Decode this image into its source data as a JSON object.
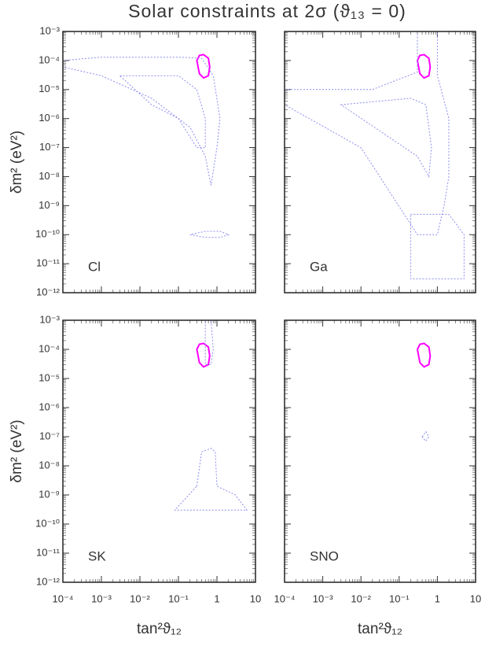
{
  "title": "Solar constraints at 2σ (ϑ₁₃ = 0)",
  "chart_data": [
    {
      "type": "contour",
      "label": "Cl",
      "log": true,
      "ylabel": "δm² (eV²)",
      "xtick_labels": false,
      "ytick_labels": true,
      "xlim": [
        0.0001,
        10
      ],
      "ylim": [
        1e-12,
        0.001
      ],
      "xticks": [
        {
          "value": 0.0001,
          "label": "10⁻⁴"
        },
        {
          "value": 0.001,
          "label": "10⁻³"
        },
        {
          "value": 0.01,
          "label": "10⁻²"
        },
        {
          "value": 0.1,
          "label": "10⁻¹"
        },
        1,
        10
      ],
      "yticks": [
        {
          "value": 1e-12,
          "label": "10⁻¹²"
        },
        {
          "value": 1e-11,
          "label": "10⁻¹¹"
        },
        {
          "value": 1e-10,
          "label": "10⁻¹⁰"
        },
        {
          "value": 1e-09,
          "label": "10⁻⁹"
        },
        {
          "value": 1e-08,
          "label": "10⁻⁸"
        },
        {
          "value": 1e-07,
          "label": "10⁻⁷"
        },
        {
          "value": 1e-06,
          "label": "10⁻⁶"
        },
        {
          "value": 1e-05,
          "label": "10⁻⁵"
        },
        {
          "value": 0.0001,
          "label": "10⁻⁴"
        },
        {
          "value": 0.001,
          "label": "10⁻³"
        }
      ],
      "series": [
        {
          "color": "#ff00ff",
          "dashed": false,
          "x": [
            0.3,
            0.35,
            0.45,
            0.6,
            0.65,
            0.6,
            0.45,
            0.35
          ],
          "y": [
            0.0001,
            0.00015,
            0.00016,
            0.00012,
            6e-05,
            3e-05,
            2.5e-05,
            3.5e-05
          ]
        },
        {
          "color": "#8c8cf0",
          "dashed": true,
          "x": [
            0.0001,
            0.001,
            0.1,
            0.4,
            0.8,
            1.2,
            1,
            0.7,
            0.5,
            0.2,
            0.02,
            0.001,
            0.0001
          ],
          "y": [
            0.0001,
            0.00013,
            0.00013,
            0.00012,
            3e-05,
            1e-06,
            1e-07,
            5e-09,
            5e-08,
            5e-07,
            5e-06,
            3e-05,
            6e-05
          ]
        },
        {
          "color": "#8c8cf0",
          "dashed": true,
          "x": [
            0.003,
            0.1,
            0.3,
            0.5,
            0.5,
            0.3,
            0.1,
            0.02
          ],
          "y": [
            3e-05,
            3e-05,
            1e-05,
            1e-06,
            1e-07,
            1e-07,
            1e-06,
            3e-06
          ]
        },
        {
          "color": "#8c8cf0",
          "dashed": true,
          "x": [
            0.2,
            0.5,
            1.2,
            2,
            1.2,
            0.5
          ],
          "y": [
            1e-10,
            8e-11,
            8e-11,
            1e-10,
            1.3e-10,
            1.3e-10
          ]
        }
      ]
    },
    {
      "type": "contour",
      "label": "Ga",
      "log": true,
      "xtick_labels": false,
      "ytick_labels": false,
      "xlim": [
        0.0001,
        10
      ],
      "ylim": [
        1e-12,
        0.001
      ],
      "xticks": [
        0.0001,
        0.001,
        0.01,
        0.1,
        1,
        10
      ],
      "yticks": [
        1e-12,
        1e-11,
        1e-10,
        1e-09,
        1e-08,
        1e-07,
        1e-06,
        1e-05,
        0.0001,
        0.001
      ],
      "series": [
        {
          "color": "#ff00ff",
          "dashed": false,
          "x": [
            0.3,
            0.35,
            0.45,
            0.6,
            0.65,
            0.6,
            0.45,
            0.35
          ],
          "y": [
            0.0001,
            0.00015,
            0.00016,
            0.00012,
            6e-05,
            3e-05,
            2.5e-05,
            3.5e-05
          ]
        },
        {
          "color": "#8c8cf0",
          "dashed": true,
          "x": [
            0.0001,
            0.02,
            0.3,
            0.3,
            1,
            1,
            2,
            2,
            1.5,
            1,
            0.3,
            0.01,
            0.0001
          ],
          "y": [
            1e-05,
            1e-05,
            4e-05,
            0.001,
            0.001,
            3e-05,
            1e-06,
            1e-08,
            1e-09,
            1e-10,
            1e-10,
            1e-07,
            3e-06
          ]
        },
        {
          "color": "#8c8cf0",
          "dashed": true,
          "x": [
            0.003,
            0.2,
            0.5,
            0.7,
            0.6,
            0.3
          ],
          "y": [
            3e-06,
            5e-06,
            3e-06,
            1e-07,
            1e-08,
            5e-08
          ]
        },
        {
          "color": "#8c8cf0",
          "dashed": true,
          "x": [
            0.2,
            2,
            5,
            5,
            2,
            0.2
          ],
          "y": [
            5e-10,
            5e-10,
            1e-10,
            3e-12,
            3e-12,
            3e-12
          ]
        }
      ]
    },
    {
      "type": "contour",
      "label": "SK",
      "log": true,
      "ylabel": "δm² (eV²)",
      "xlabel": "tan²ϑ₁₂",
      "xtick_labels": true,
      "ytick_labels": true,
      "xlim": [
        0.0001,
        10
      ],
      "ylim": [
        1e-12,
        0.001
      ],
      "xticks": [
        {
          "value": 0.0001,
          "label": "10⁻⁴"
        },
        {
          "value": 0.001,
          "label": "10⁻³"
        },
        {
          "value": 0.01,
          "label": "10⁻²"
        },
        {
          "value": 0.1,
          "label": "10⁻¹"
        },
        1,
        10
      ],
      "yticks": [
        {
          "value": 1e-12,
          "label": "10⁻¹²"
        },
        {
          "value": 1e-11,
          "label": "10⁻¹¹"
        },
        {
          "value": 1e-10,
          "label": "10⁻¹⁰"
        },
        {
          "value": 1e-09,
          "label": "10⁻⁹"
        },
        {
          "value": 1e-08,
          "label": "10⁻⁸"
        },
        {
          "value": 1e-07,
          "label": "10⁻⁷"
        },
        {
          "value": 1e-06,
          "label": "10⁻⁶"
        },
        {
          "value": 1e-05,
          "label": "10⁻⁵"
        },
        {
          "value": 0.0001,
          "label": "10⁻⁴"
        },
        {
          "value": 0.001,
          "label": "10⁻³"
        }
      ],
      "series": [
        {
          "color": "#ff00ff",
          "dashed": false,
          "x": [
            0.3,
            0.35,
            0.45,
            0.6,
            0.65,
            0.6,
            0.45,
            0.35
          ],
          "y": [
            0.0001,
            0.00015,
            0.00016,
            0.00012,
            6e-05,
            3e-05,
            2.5e-05,
            3.5e-05
          ]
        },
        {
          "color": "#8c8cf0",
          "dashed": true,
          "x": [
            0.5,
            0.7,
            0.8,
            0.7,
            0.5
          ],
          "y": [
            0.001,
            0.001,
            0.0001,
            3e-05,
            3e-05
          ]
        },
        {
          "color": "#8c8cf0",
          "dashed": true,
          "x": [
            0.3,
            0.4,
            0.7,
            0.9,
            1,
            3,
            6,
            0.08
          ],
          "y": [
            2e-09,
            3e-08,
            4e-08,
            3e-08,
            2e-09,
            1e-09,
            3e-10,
            3e-10
          ]
        }
      ]
    },
    {
      "type": "contour",
      "label": "SNO",
      "log": true,
      "xlabel": "tan²ϑ₁₂",
      "xtick_labels": true,
      "ytick_labels": false,
      "xlim": [
        0.0001,
        10
      ],
      "ylim": [
        1e-12,
        0.001
      ],
      "xticks": [
        {
          "value": 0.0001,
          "label": "10⁻⁴"
        },
        {
          "value": 0.001,
          "label": "10⁻³"
        },
        {
          "value": 0.01,
          "label": "10⁻²"
        },
        {
          "value": 0.1,
          "label": "10⁻¹"
        },
        1,
        10
      ],
      "yticks": [
        1e-12,
        1e-11,
        1e-10,
        1e-09,
        1e-08,
        1e-07,
        1e-06,
        1e-05,
        0.0001,
        0.001
      ],
      "series": [
        {
          "color": "#ff00ff",
          "dashed": false,
          "x": [
            0.3,
            0.35,
            0.45,
            0.6,
            0.65,
            0.6,
            0.45,
            0.35
          ],
          "y": [
            0.0001,
            0.00015,
            0.00016,
            0.00012,
            6e-05,
            3e-05,
            2.5e-05,
            3.5e-05
          ]
        },
        {
          "color": "#8c8cf0",
          "dashed": true,
          "x": [
            0.4,
            0.5,
            0.6,
            0.5
          ],
          "y": [
            1e-07,
            1.5e-07,
            1e-07,
            7e-08
          ]
        }
      ]
    }
  ]
}
